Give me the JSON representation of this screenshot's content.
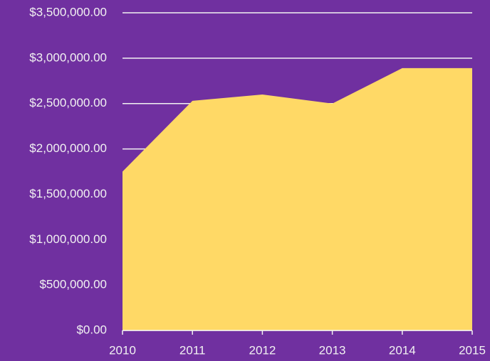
{
  "chart_data": {
    "type": "area",
    "x": [
      2010,
      2011,
      2012,
      2013,
      2014,
      2015
    ],
    "values": [
      1750000,
      2530000,
      2600000,
      2500000,
      2890000,
      2890000
    ],
    "color": "#ffd966",
    "xlim": [
      2010,
      2015
    ],
    "xticks": [
      2010,
      2011,
      2012,
      2013,
      2014,
      2015
    ],
    "ylim": [
      0,
      3500000
    ],
    "yticks": [
      {
        "value": 0,
        "label": "$0.00"
      },
      {
        "value": 500000,
        "label": "$500,000.00"
      },
      {
        "value": 1000000,
        "label": "$1,000,000.00"
      },
      {
        "value": 1500000,
        "label": "$1,500,000.00"
      },
      {
        "value": 2000000,
        "label": "$2,000,000.00"
      },
      {
        "value": 2500000,
        "label": "$2,500,000.00"
      },
      {
        "value": 3000000,
        "label": "$3,000,000.00"
      },
      {
        "value": 3500000,
        "label": "$3,500,000.00"
      }
    ],
    "grid": true
  }
}
